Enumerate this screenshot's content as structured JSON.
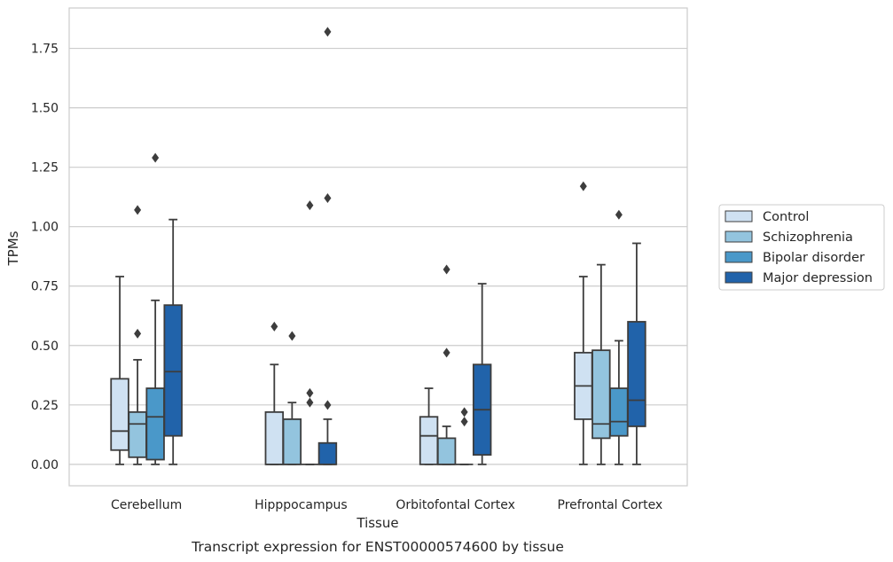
{
  "chart_data": {
    "type": "boxplot",
    "caption": "Transcript expression for ENST00000574600 by tissue",
    "xlabel": "Tissue",
    "ylabel": "TPMs",
    "ylim": [
      -0.09,
      1.92
    ],
    "yticks": [
      "0.00",
      "0.25",
      "0.50",
      "0.75",
      "1.00",
      "1.25",
      "1.50",
      "1.75"
    ],
    "grid": "horizontal",
    "legend_position": "right",
    "categories": [
      "Cerebellum",
      "Hipppocampus",
      "Orbitofontal Cortex",
      "Prefrontal Cortex"
    ],
    "series": [
      {
        "name": "Control",
        "color": "#cfe1f2",
        "boxes": [
          {
            "whislo": 0.0,
            "q1": 0.06,
            "med": 0.14,
            "q3": 0.36,
            "whishi": 0.79,
            "fliers": []
          },
          {
            "whislo": 0.0,
            "q1": 0.0,
            "med": 0.0,
            "q3": 0.22,
            "whishi": 0.42,
            "fliers": [
              0.58
            ]
          },
          {
            "whislo": 0.0,
            "q1": 0.0,
            "med": 0.12,
            "q3": 0.2,
            "whishi": 0.32,
            "fliers": []
          },
          {
            "whislo": 0.0,
            "q1": 0.19,
            "med": 0.33,
            "q3": 0.47,
            "whishi": 0.79,
            "fliers": [
              1.17
            ]
          }
        ]
      },
      {
        "name": "Schizophrenia",
        "color": "#93c4de",
        "boxes": [
          {
            "whislo": 0.0,
            "q1": 0.03,
            "med": 0.17,
            "q3": 0.22,
            "whishi": 0.44,
            "fliers": [
              0.55,
              1.07
            ]
          },
          {
            "whislo": 0.0,
            "q1": 0.0,
            "med": 0.0,
            "q3": 0.19,
            "whishi": 0.26,
            "fliers": [
              0.54
            ]
          },
          {
            "whislo": 0.0,
            "q1": 0.0,
            "med": 0.0,
            "q3": 0.11,
            "whishi": 0.16,
            "fliers": [
              0.47,
              0.82
            ]
          },
          {
            "whislo": 0.0,
            "q1": 0.11,
            "med": 0.17,
            "q3": 0.48,
            "whishi": 0.84,
            "fliers": []
          }
        ]
      },
      {
        "name": "Bipolar disorder",
        "color": "#4a98c9",
        "boxes": [
          {
            "whislo": 0.0,
            "q1": 0.02,
            "med": 0.2,
            "q3": 0.32,
            "whishi": 0.69,
            "fliers": [
              1.29
            ]
          },
          {
            "whislo": 0.0,
            "q1": 0.0,
            "med": 0.0,
            "q3": 0.0,
            "whishi": 0.0,
            "fliers": [
              0.26,
              0.3,
              1.09
            ]
          },
          {
            "whislo": 0.0,
            "q1": 0.0,
            "med": 0.0,
            "q3": 0.0,
            "whishi": 0.0,
            "fliers": [
              0.18,
              0.22
            ]
          },
          {
            "whislo": 0.0,
            "q1": 0.12,
            "med": 0.18,
            "q3": 0.32,
            "whishi": 0.52,
            "fliers": [
              1.05
            ]
          }
        ]
      },
      {
        "name": "Major depression",
        "color": "#2163aa",
        "boxes": [
          {
            "whislo": 0.0,
            "q1": 0.12,
            "med": 0.39,
            "q3": 0.67,
            "whishi": 1.03,
            "fliers": []
          },
          {
            "whislo": 0.0,
            "q1": 0.0,
            "med": 0.0,
            "q3": 0.09,
            "whishi": 0.19,
            "fliers": [
              0.25,
              1.12,
              1.82
            ]
          },
          {
            "whislo": 0.0,
            "q1": 0.04,
            "med": 0.23,
            "q3": 0.42,
            "whishi": 0.76,
            "fliers": []
          },
          {
            "whislo": 0.0,
            "q1": 0.16,
            "med": 0.27,
            "q3": 0.6,
            "whishi": 0.93,
            "fliers": []
          }
        ]
      }
    ]
  }
}
